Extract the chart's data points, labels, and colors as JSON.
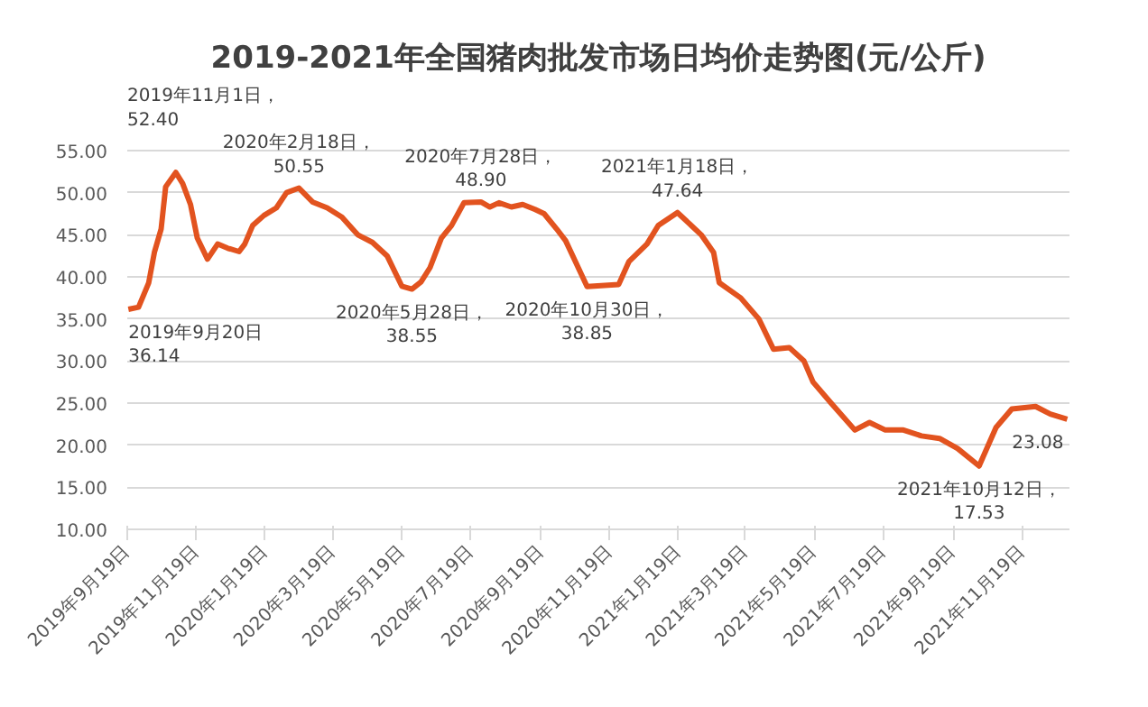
{
  "chart_data": {
    "type": "line",
    "title": "2019-2021年全国猪肉批发市场日均价走势图(元/公斤)",
    "x": [
      "2019-09-20",
      "2019-09-29",
      "2019-10-08",
      "2019-10-13",
      "2019-10-19",
      "2019-10-23",
      "2019-11-01",
      "2019-11-07",
      "2019-11-14",
      "2019-11-20",
      "2019-11-29",
      "2019-12-08",
      "2019-12-17",
      "2019-12-27",
      "2020-01-01",
      "2020-01-08",
      "2020-01-18",
      "2020-01-29",
      "2020-02-07",
      "2020-02-18",
      "2020-03-01",
      "2020-03-14",
      "2020-03-27",
      "2020-04-10",
      "2020-04-23",
      "2020-05-06",
      "2020-05-19",
      "2020-05-28",
      "2020-06-05",
      "2020-06-13",
      "2020-06-23",
      "2020-07-02",
      "2020-07-13",
      "2020-07-28",
      "2020-08-05",
      "2020-08-13",
      "2020-08-24",
      "2020-09-03",
      "2020-09-14",
      "2020-09-22",
      "2020-10-03",
      "2020-10-11",
      "2020-10-19",
      "2020-10-30",
      "2020-11-27",
      "2020-12-06",
      "2020-12-22",
      "2021-01-01",
      "2021-01-18",
      "2021-02-08",
      "2021-02-19",
      "2021-02-24",
      "2021-03-15",
      "2021-03-31",
      "2021-04-13",
      "2021-04-27",
      "2021-05-10",
      "2021-05-18",
      "2021-06-03",
      "2021-06-24",
      "2021-07-07",
      "2021-07-21",
      "2021-08-06",
      "2021-08-22",
      "2021-09-07",
      "2021-09-23",
      "2021-10-12",
      "2021-10-27",
      "2021-11-10",
      "2021-12-01",
      "2021-12-14",
      "2021-12-29"
    ],
    "series": [
      {
        "color": "#e2531f",
        "values": [
          36.14,
          36.4,
          39.3,
          42.9,
          45.7,
          50.7,
          52.4,
          51.1,
          48.6,
          44.6,
          42.1,
          43.9,
          43.4,
          43.0,
          43.9,
          46.1,
          47.3,
          48.2,
          50.0,
          50.55,
          48.9,
          48.2,
          47.1,
          45.0,
          44.1,
          42.5,
          38.9,
          38.55,
          39.4,
          41.1,
          44.6,
          46.1,
          48.8,
          48.9,
          48.3,
          48.8,
          48.3,
          48.6,
          48.0,
          47.5,
          45.7,
          44.3,
          42.0,
          38.85,
          39.1,
          41.8,
          43.9,
          46.1,
          47.64,
          45.0,
          42.9,
          39.3,
          37.5,
          35.0,
          31.4,
          31.6,
          30.0,
          27.5,
          25.0,
          21.8,
          22.7,
          21.8,
          21.8,
          21.1,
          20.8,
          19.6,
          17.53,
          22.1,
          24.3,
          24.6,
          23.7,
          23.08
        ]
      }
    ],
    "xlim": [
      "2019-09-19",
      "2021-12-31"
    ],
    "xticks": [
      {
        "value": "2019-09-19",
        "label": "2019年9月19日"
      },
      {
        "value": "2019-11-19",
        "label": "2019年11月19日"
      },
      {
        "value": "2020-01-19",
        "label": "2020年1月19日"
      },
      {
        "value": "2020-03-19",
        "label": "2020年3月19日"
      },
      {
        "value": "2020-05-19",
        "label": "2020年5月19日"
      },
      {
        "value": "2020-07-19",
        "label": "2020年7月19日"
      },
      {
        "value": "2020-09-19",
        "label": "2020年9月19日"
      },
      {
        "value": "2020-11-19",
        "label": "2020年11月19日"
      },
      {
        "value": "2021-01-19",
        "label": "2021年1月19日"
      },
      {
        "value": "2021-03-19",
        "label": "2021年3月19日"
      },
      {
        "value": "2021-05-19",
        "label": "2021年5月19日"
      },
      {
        "value": "2021-07-19",
        "label": "2021年7月19日"
      },
      {
        "value": "2021-09-19",
        "label": "2021年9月19日"
      },
      {
        "value": "2021-11-19",
        "label": "2021年11月19日"
      }
    ],
    "ylim": [
      10,
      55
    ],
    "yticks": [
      {
        "value": 10,
        "label": "10.00"
      },
      {
        "value": 15,
        "label": "15.00"
      },
      {
        "value": 20,
        "label": "20.00"
      },
      {
        "value": 25,
        "label": "25.00"
      },
      {
        "value": 30,
        "label": "30.00"
      },
      {
        "value": 35,
        "label": "35.00"
      },
      {
        "value": 40,
        "label": "40.00"
      },
      {
        "value": 45,
        "label": "45.00"
      },
      {
        "value": 50,
        "label": "50.00"
      },
      {
        "value": 55,
        "label": "55.00"
      }
    ],
    "grid": "y",
    "marker": "none",
    "line_style": "solid",
    "annotations": [
      {
        "text": "2019年9月20日\n36.14",
        "x": "2019-09-20",
        "y": 36.14
      },
      {
        "text": "2019年11月1日，\n52.40",
        "x": "2019-11-01",
        "y": 52.4
      },
      {
        "text": "2020年2月18日，\n50.55",
        "x": "2020-02-18",
        "y": 50.55
      },
      {
        "text": "2020年5月28日，\n38.55",
        "x": "2020-05-28",
        "y": 38.55
      },
      {
        "text": "2020年7月28日，\n48.90",
        "x": "2020-07-28",
        "y": 48.9
      },
      {
        "text": "2020年10月30日，\n38.85",
        "x": "2020-10-30",
        "y": 38.85
      },
      {
        "text": "2021年1月18日，\n47.64",
        "x": "2021-01-18",
        "y": 47.64
      },
      {
        "text": "2021年10月12日，\n17.53",
        "x": "2021-10-12",
        "y": 17.53
      },
      {
        "text": "23.08",
        "x": "2021-12-29",
        "y": 23.08
      }
    ]
  }
}
